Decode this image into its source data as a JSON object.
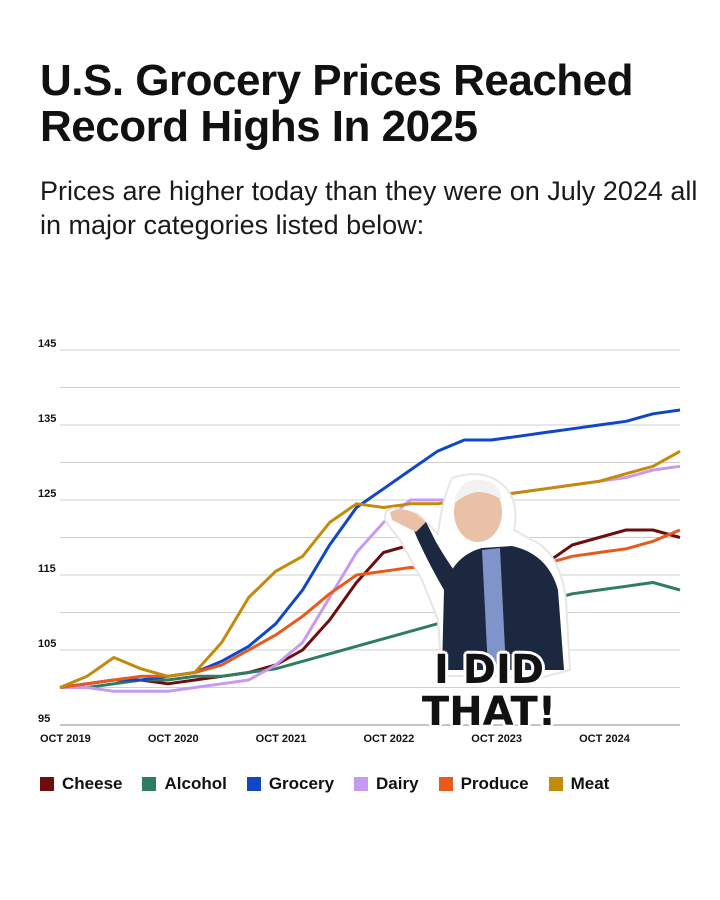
{
  "header": {
    "title": "U.S. Grocery Prices Reached Record Highs In 2025",
    "subtitle": "Prices are higher today than they were on July 2024 all in major categories listed below:"
  },
  "sticker": {
    "line1": "I DID",
    "line2": "THAT!"
  },
  "chart_data": {
    "type": "line",
    "x_tick_labels": [
      "OCT 2019",
      "OCT 2020",
      "OCT 2021",
      "OCT 2022",
      "OCT 2023",
      "OCT 2024"
    ],
    "y_tick_labels": [
      "145",
      "135",
      "125",
      "115",
      "105",
      "95"
    ],
    "ylim": [
      95,
      145
    ],
    "xlim": [
      2019.75,
      2025.5
    ],
    "grid": true,
    "legend_position": "bottom",
    "x": [
      2019.75,
      2020.0,
      2020.25,
      2020.5,
      2020.75,
      2021.0,
      2021.25,
      2021.5,
      2021.75,
      2022.0,
      2022.25,
      2022.5,
      2022.75,
      2023.0,
      2023.25,
      2023.5,
      2023.75,
      2024.0,
      2024.25,
      2024.5,
      2024.75,
      2025.0,
      2025.25,
      2025.5
    ],
    "series": [
      {
        "name": "Cheese",
        "color": "#6e0d0d",
        "values": [
          100,
          100.5,
          101,
          101,
          100.5,
          101,
          101.5,
          102,
          103,
          105,
          109,
          114,
          118,
          119,
          118,
          117,
          117,
          116.5,
          116.5,
          119,
          120,
          121,
          121,
          120
        ]
      },
      {
        "name": "Alcohol",
        "color": "#2e7d62",
        "values": [
          100,
          100,
          100.5,
          101,
          101,
          101.5,
          101.5,
          102,
          102.5,
          103.5,
          104.5,
          105.5,
          106.5,
          107.5,
          108.5,
          109.5,
          110.5,
          111,
          111.5,
          112.5,
          113,
          113.5,
          114,
          113
        ]
      },
      {
        "name": "Grocery",
        "color": "#1046c8",
        "values": [
          100,
          100.5,
          101,
          101,
          101.5,
          102,
          103.5,
          105.5,
          108.5,
          113,
          119,
          124,
          126.5,
          129,
          131.5,
          133,
          133,
          133.5,
          134,
          134.5,
          135,
          135.5,
          136.5,
          137
        ]
      },
      {
        "name": "Dairy",
        "color": "#c79af2",
        "values": [
          100,
          100,
          99.5,
          99.5,
          99.5,
          100,
          100.5,
          101,
          103,
          106,
          112,
          118,
          122,
          125,
          125,
          125,
          125.5,
          126,
          126.5,
          127,
          127.5,
          128,
          129,
          129.5
        ]
      },
      {
        "name": "Produce",
        "color": "#e85a1c",
        "values": [
          100,
          100.5,
          101,
          101.5,
          101.5,
          102,
          103,
          105,
          107,
          109.5,
          112.5,
          115,
          115.5,
          116,
          116,
          116,
          116,
          116.5,
          116.5,
          117.5,
          118,
          118.5,
          119.5,
          121
        ]
      },
      {
        "name": "Meat",
        "color": "#c38a0b",
        "values": [
          100,
          101.5,
          104,
          102.5,
          101.5,
          102,
          106,
          112,
          115.5,
          117.5,
          122,
          124.5,
          124,
          124.5,
          124.5,
          125,
          125.5,
          126,
          126.5,
          127,
          127.5,
          128.5,
          129.5,
          131.5
        ]
      }
    ]
  }
}
